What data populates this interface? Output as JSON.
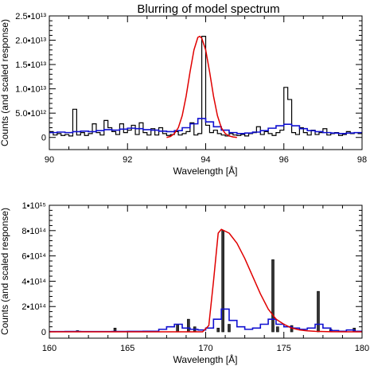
{
  "title": "Blurring of model spectrum",
  "colors": {
    "data": "#000000",
    "blue": "#1010d0",
    "red": "#e00000"
  },
  "chart_data": [
    {
      "type": "line",
      "xlabel": "Wavelength [Å]",
      "ylabel": "Counts (and scaled response)",
      "xlim": [
        90,
        98
      ],
      "ylim": [
        -2500000000000.0,
        25000000000000.0
      ],
      "xticks": [
        90,
        92,
        94,
        96,
        98
      ],
      "xtick_labels": [
        "90",
        "92",
        "94",
        "96",
        "98"
      ],
      "yticks": [
        0,
        5000000000000.0,
        10000000000000.0,
        15000000000000.0,
        20000000000000.0,
        25000000000000.0
      ],
      "ytick_labels": [
        "0",
        "5.0•10¹²",
        "1.0•10¹³",
        "1.5•10¹³",
        "2.0•10¹³",
        "2.5•10¹³"
      ],
      "series": [
        {
          "style": "histogram",
          "color": "#000000",
          "x": [
            90.0,
            90.1,
            90.2,
            90.3,
            90.4,
            90.5,
            90.6,
            90.7,
            90.8,
            90.9,
            91.0,
            91.1,
            91.2,
            91.3,
            91.4,
            91.5,
            91.6,
            91.7,
            91.8,
            91.9,
            92.0,
            92.1,
            92.2,
            92.3,
            92.4,
            92.5,
            92.6,
            92.7,
            92.8,
            92.9,
            93.0,
            93.1,
            93.2,
            93.3,
            93.4,
            93.5,
            93.6,
            93.7,
            93.8,
            93.9,
            94.0,
            94.1,
            94.2,
            94.3,
            94.4,
            94.5,
            94.6,
            94.7,
            94.8,
            94.9,
            95.0,
            95.1,
            95.2,
            95.3,
            95.4,
            95.5,
            95.6,
            95.7,
            95.8,
            95.9,
            96.0,
            96.1,
            96.2,
            96.3,
            96.4,
            96.5,
            96.6,
            96.7,
            96.8,
            96.9,
            97.0,
            97.1,
            97.2,
            97.3,
            97.4,
            97.5,
            97.6,
            97.7,
            97.8,
            97.9
          ],
          "values": [
            1200000000000.0,
            500000000000.0,
            800000000000.0,
            400000000000.0,
            600000000000.0,
            300000000000.0,
            5800000000000.0,
            500000000000.0,
            1000000000000.0,
            400000000000.0,
            800000000000.0,
            2800000000000.0,
            1000000000000.0,
            500000000000.0,
            3500000000000.0,
            2000000000000.0,
            1200000000000.0,
            600000000000.0,
            2800000000000.0,
            1000000000000.0,
            1500000000000.0,
            2500000000000.0,
            600000000000.0,
            3000000000000.0,
            1000000000000.0,
            500000000000.0,
            1800000000000.0,
            500000000000.0,
            2000000000000.0,
            800000000000.0,
            400000000000.0,
            600000000000.0,
            1200000000000.0,
            500000000000.0,
            800000000000.0,
            1200000000000.0,
            3000000000000.0,
            500000000000.0,
            800000000000.0,
            20800000000000.0,
            2500000000000.0,
            1000000000000.0,
            1500000000000.0,
            800000000000.0,
            500000000000.0,
            300000000000.0,
            800000000000.0,
            500000000000.0,
            400000000000.0,
            600000000000.0,
            300000000000.0,
            800000000000.0,
            1000000000000.0,
            2200000000000.0,
            600000000000.0,
            1200000000000.0,
            800000000000.0,
            400000000000.0,
            1000000000000.0,
            1500000000000.0,
            10300000000000.0,
            7800000000000.0,
            1000000000000.0,
            600000000000.0,
            2000000000000.0,
            1000000000000.0,
            500000000000.0,
            1500000000000.0,
            600000000000.0,
            1000000000000.0,
            1800000000000.0,
            500000000000.0,
            800000000000.0,
            1000000000000.0,
            400000000000.0,
            600000000000.0,
            1200000000000.0,
            800000000000.0,
            1000000000000.0,
            800000000000.0
          ]
        },
        {
          "style": "histogram",
          "color": "#1010d0",
          "x": [
            90.0,
            90.2,
            90.4,
            90.6,
            90.8,
            91.0,
            91.2,
            91.4,
            91.6,
            91.8,
            92.0,
            92.2,
            92.4,
            92.6,
            92.8,
            93.0,
            93.2,
            93.4,
            93.6,
            93.8,
            94.0,
            94.2,
            94.4,
            94.6,
            94.8,
            95.0,
            95.2,
            95.4,
            95.6,
            95.8,
            96.0,
            96.2,
            96.4,
            96.6,
            96.8,
            97.0,
            97.2,
            97.4,
            97.6,
            97.8
          ],
          "values": [
            1000000000000.0,
            1100000000000.0,
            1000000000000.0,
            1200000000000.0,
            1300000000000.0,
            1200000000000.0,
            1400000000000.0,
            1600000000000.0,
            1500000000000.0,
            1700000000000.0,
            1900000000000.0,
            1800000000000.0,
            1600000000000.0,
            1500000000000.0,
            1300000000000.0,
            1200000000000.0,
            1400000000000.0,
            2000000000000.0,
            2800000000000.0,
            3900000000000.0,
            3200000000000.0,
            2200000000000.0,
            1500000000000.0,
            1000000000000.0,
            800000000000.0,
            900000000000.0,
            1100000000000.0,
            1400000000000.0,
            1900000000000.0,
            2400000000000.0,
            2700000000000.0,
            2400000000000.0,
            1800000000000.0,
            1400000000000.0,
            1200000000000.0,
            1000000000000.0,
            900000000000.0,
            800000000000.0,
            900000000000.0,
            1000000000000.0
          ]
        },
        {
          "style": "line",
          "color": "#e00000",
          "x": [
            93.0,
            93.1,
            93.2,
            93.3,
            93.4,
            93.5,
            93.6,
            93.7,
            93.8,
            93.85,
            93.9,
            94.0,
            94.1,
            94.2,
            94.3,
            94.4,
            94.5,
            94.6,
            94.7,
            94.8
          ],
          "values": [
            0,
            200000000000.0,
            800000000000.0,
            2000000000000.0,
            4500000000000.0,
            8500000000000.0,
            13500000000000.0,
            18000000000000.0,
            20600000000000.0,
            20800000000000.0,
            20400000000000.0,
            18000000000000.0,
            13500000000000.0,
            8500000000000.0,
            4500000000000.0,
            2000000000000.0,
            800000000000.0,
            300000000000.0,
            100000000000.0,
            0
          ]
        }
      ]
    },
    {
      "type": "line",
      "xlabel": "Wavelength [Å]",
      "ylabel": "Counts (and scaled response)",
      "xlim": [
        160,
        180
      ],
      "ylim": [
        -50000000000000.0,
        1000000000000000.0
      ],
      "xticks": [
        160,
        165,
        170,
        175,
        180
      ],
      "xtick_labels": [
        "160",
        "165",
        "170",
        "175",
        "180"
      ],
      "yticks": [
        0,
        200000000000000.0,
        400000000000000.0,
        600000000000000.0,
        800000000000000.0,
        1000000000000000.0
      ],
      "ytick_labels": [
        "0",
        "2•10¹⁴",
        "4•10¹⁴",
        "6•10¹⁴",
        "8•10¹⁴",
        "1•10¹⁵"
      ],
      "series": [
        {
          "style": "spikes",
          "color": "#000000",
          "x": [
            161.8,
            164.2,
            168.2,
            168.9,
            169.3,
            170.8,
            171.1,
            171.5,
            174.3,
            174.6,
            175.5,
            177.2,
            178.0,
            179.5
          ],
          "values": [
            10000000000000.0,
            30000000000000.0,
            60000000000000.0,
            100000000000000.0,
            40000000000000.0,
            30000000000000.0,
            800000000000000.0,
            60000000000000.0,
            570000000000000.0,
            40000000000000.0,
            50000000000000.0,
            320000000000000.0,
            20000000000000.0,
            30000000000000.0
          ]
        },
        {
          "style": "histogram",
          "color": "#1010d0",
          "x": [
            160,
            161,
            162,
            163,
            164,
            165,
            166,
            167,
            167.5,
            168,
            168.5,
            169,
            169.5,
            170,
            170.5,
            171,
            171.5,
            172,
            172.5,
            173,
            173.5,
            174,
            174.5,
            175,
            175.5,
            176,
            176.5,
            177,
            177.5,
            178,
            178.5,
            179,
            179.5
          ],
          "values": [
            2000000000000.0,
            3000000000000.0,
            2000000000000.0,
            2000000000000.0,
            3000000000000.0,
            4000000000000.0,
            5000000000000.0,
            20000000000000.0,
            40000000000000.0,
            60000000000000.0,
            30000000000000.0,
            20000000000000.0,
            15000000000000.0,
            30000000000000.0,
            100000000000000.0,
            180000000000000.0,
            90000000000000.0,
            40000000000000.0,
            20000000000000.0,
            30000000000000.0,
            60000000000000.0,
            100000000000000.0,
            60000000000000.0,
            40000000000000.0,
            30000000000000.0,
            20000000000000.0,
            30000000000000.0,
            60000000000000.0,
            30000000000000.0,
            10000000000000.0,
            5000000000000.0,
            15000000000000.0,
            5000000000000.0
          ]
        },
        {
          "style": "line",
          "color": "#e00000",
          "x": [
            160,
            168,
            169.8,
            170.2,
            170.5,
            170.8,
            171.0,
            171.5,
            172,
            172.5,
            173,
            173.5,
            174,
            174.5,
            175,
            175.5,
            176,
            176.5,
            177,
            178,
            179,
            180
          ],
          "values": [
            0,
            0,
            0,
            50000000000000.0,
            400000000000000.0,
            780000000000000.0,
            810000000000000.0,
            780000000000000.0,
            700000000000000.0,
            580000000000000.0,
            440000000000000.0,
            300000000000000.0,
            180000000000000.0,
            100000000000000.0,
            60000000000000.0,
            30000000000000.0,
            15000000000000.0,
            8000000000000.0,
            4000000000000.0,
            1000000000000.0,
            0,
            0
          ]
        }
      ]
    }
  ]
}
